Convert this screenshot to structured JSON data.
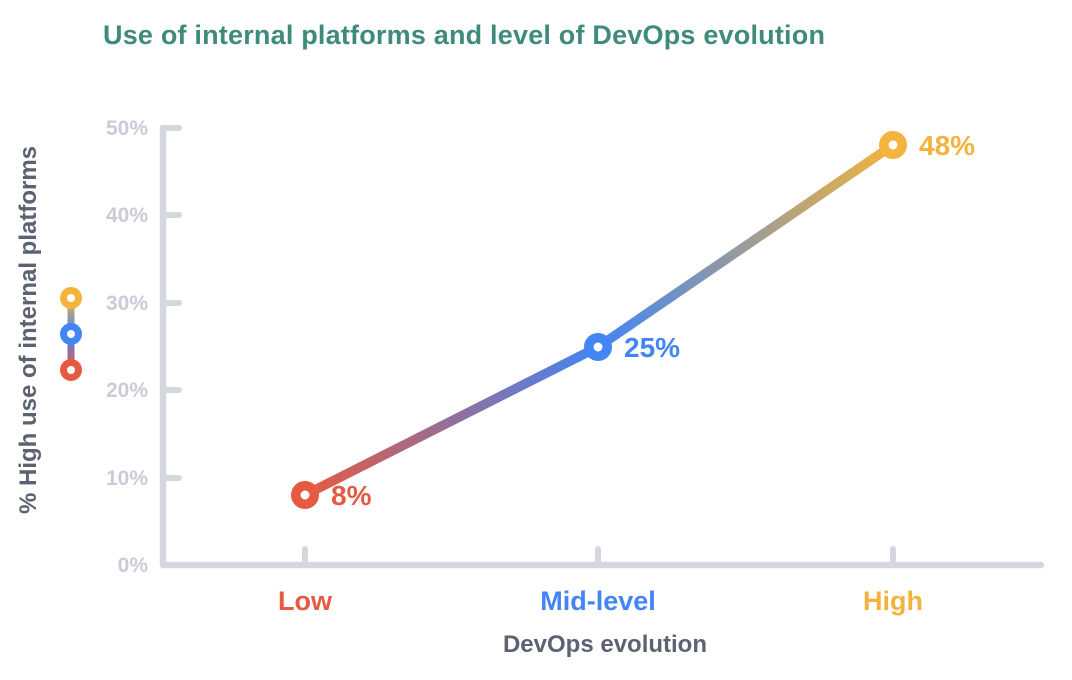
{
  "title": "Use of internal platforms and level of DevOps evolution",
  "colors": {
    "title": "#3E8B7E",
    "axis": "#D5D7DE",
    "tick_label": "#C9CCD6",
    "axis_label": "#5B6372",
    "background": "#FFFFFF",
    "low": "#E65A41",
    "mid": "#4285F4",
    "high": "#F3B33D"
  },
  "legend": {
    "style": "vertical-gradient-dot-glyph",
    "dot_colors_top_to_bottom": [
      "#F3B33D",
      "#4285F4",
      "#E65A41"
    ]
  },
  "chart_data": {
    "type": "line",
    "title": "Use of internal platforms and level of DevOps evolution",
    "xlabel": "DevOps evolution",
    "ylabel": "% High use of internal platforms",
    "categories": [
      "Low",
      "Mid-level",
      "High"
    ],
    "values": [
      8,
      25,
      48
    ],
    "point_labels": [
      "8%",
      "25%",
      "48%"
    ],
    "point_colors": [
      "#E65A41",
      "#4285F4",
      "#F3B33D"
    ],
    "category_label_colors": [
      "#E65A41",
      "#4285F4",
      "#F3B33D"
    ],
    "ylim": [
      0,
      50
    ],
    "ytick_labels": [
      "0%",
      "10%",
      "20%",
      "30%",
      "40%",
      "50%"
    ],
    "grid": false,
    "legend_position": "left-of-y-axis",
    "line_style": "gradient between consecutive point colors",
    "marker": "donut"
  }
}
